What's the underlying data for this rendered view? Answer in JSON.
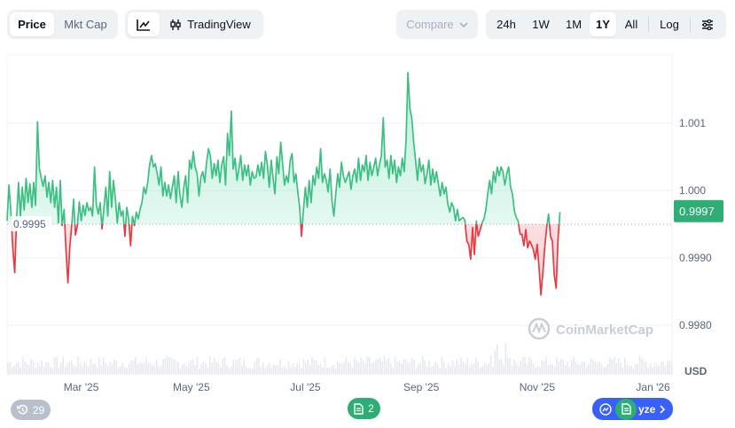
{
  "toolbar": {
    "price_label": "Price",
    "mktcap_label": "Mkt Cap",
    "line_icon": "line-chart-icon",
    "candle_icon": "candlestick-icon",
    "tradingview_label": "TradingView",
    "compare_label": "Compare",
    "ranges": [
      "24h",
      "1W",
      "1M",
      "1Y",
      "All"
    ],
    "active_range": "1Y",
    "log_label": "Log",
    "settings_icon": "sliders-icon"
  },
  "colors": {
    "up": "#16c784",
    "up_line": "#3dbf83",
    "down": "#ea3943",
    "accent_badge": "#2eae74",
    "analyze": "#3861fb"
  },
  "chart_data": {
    "type": "area",
    "xlabel": "",
    "ylabel": "",
    "currency": "USD",
    "baseline": 0.9995,
    "baseline_label": "0.9995",
    "current_price": 0.9997,
    "current_price_label": "0.9997",
    "ylim": [
      0.9975,
      1.0018
    ],
    "y_ticks": [
      {
        "value": 1.001,
        "label": "1.001"
      },
      {
        "value": 1.0,
        "label": "1.000"
      },
      {
        "value": 0.999,
        "label": "0.9990"
      },
      {
        "value": 0.998,
        "label": "0.9980"
      }
    ],
    "x_ticks": [
      {
        "label": "Mar '25",
        "x": 9
      },
      {
        "label": "May '25",
        "x": 67
      },
      {
        "label": "Jul '25",
        "x": 127
      },
      {
        "label": "Sep '25",
        "x": 188
      },
      {
        "label": "Nov '25",
        "x": 249
      },
      {
        "label": "Jan '26",
        "x": 310
      }
    ],
    "xlim": [
      -30,
      320
    ],
    "series": [
      {
        "values": [
          [
            -30,
            0.99955
          ],
          [
            -29,
            1.00008
          ],
          [
            -28,
            0.99968
          ],
          [
            -27,
            0.99915
          ],
          [
            -26,
            0.99878
          ],
          [
            -25,
            0.99958
          ],
          [
            -24,
            1.00012
          ],
          [
            -23,
            0.99962
          ],
          [
            -22,
            1.00005
          ],
          [
            -21,
            0.99971
          ],
          [
            -20,
            1.00018
          ],
          [
            -19,
            0.99982
          ],
          [
            -18,
            1.0001
          ],
          [
            -17,
            0.99975
          ],
          [
            -16,
            1.00012
          ],
          [
            -15,
            0.99978
          ],
          [
            -14,
            1.00102
          ],
          [
            -13,
            1.00033
          ],
          [
            -12,
            1.00018
          ],
          [
            -11,
            1.00006
          ],
          [
            -10,
            1.00022
          ],
          [
            -9,
            0.9999
          ],
          [
            -8,
            1.00012
          ],
          [
            -7,
            0.99982
          ],
          [
            -6,
            1.00015
          ],
          [
            -5,
            0.99975
          ],
          [
            -4,
            1.00005
          ],
          [
            -3,
            0.99952
          ],
          [
            -2,
            1.00015
          ],
          [
            -1,
            0.99948
          ],
          [
            0,
            0.99972
          ],
          [
            1,
            0.99912
          ],
          [
            2,
            0.99863
          ],
          [
            3,
            0.99915
          ],
          [
            4,
            0.99948
          ],
          [
            5,
            0.99987
          ],
          [
            6,
            0.99934
          ],
          [
            7,
            0.99948
          ],
          [
            8,
            0.99983
          ],
          [
            9,
            0.99955
          ],
          [
            10,
            0.99978
          ],
          [
            11,
            0.99963
          ],
          [
            12,
            0.99982
          ],
          [
            13,
            0.9997
          ],
          [
            14,
            0.99975
          ],
          [
            15,
            0.99962
          ],
          [
            16,
            1.00035
          ],
          [
            17,
            0.99978
          ],
          [
            18,
            0.99965
          ],
          [
            19,
            0.99982
          ],
          [
            20,
            0.99943
          ],
          [
            21,
            0.99975
          ],
          [
            22,
            1.00005
          ],
          [
            23,
            0.99962
          ],
          [
            24,
            1.00028
          ],
          [
            25,
            0.99975
          ],
          [
            26,
            1.00015
          ],
          [
            27,
            0.99988
          ],
          [
            28,
            0.99952
          ],
          [
            29,
            0.99982
          ],
          [
            30,
            0.99962
          ],
          [
            31,
            0.9997
          ],
          [
            32,
            0.99932
          ],
          [
            33,
            0.99975
          ],
          [
            34,
            0.99958
          ],
          [
            35,
            0.99918
          ],
          [
            36,
            0.99962
          ],
          [
            37,
            0.99948
          ],
          [
            38,
            0.99968
          ],
          [
            39,
            0.99958
          ],
          [
            40,
            0.99972
          ],
          [
            41,
            0.99982
          ],
          [
            42,
            1.00005
          ],
          [
            43,
            0.99995
          ],
          [
            44,
            1.00012
          ],
          [
            45,
            1.00038
          ],
          [
            46,
            1.00052
          ],
          [
            47,
            1.00035
          ],
          [
            48,
            1.0004
          ],
          [
            49,
            1.00025
          ],
          [
            50,
            1.00008
          ],
          [
            51,
            1.00035
          ],
          [
            52,
            0.99992
          ],
          [
            53,
            1.00012
          ],
          [
            54,
            0.99992
          ],
          [
            55,
            1.00008
          ],
          [
            56,
            0.99988
          ],
          [
            57,
            1.00005
          ],
          [
            58,
            1.00022
          ],
          [
            59,
            0.99982
          ],
          [
            60,
            1.00028
          ],
          [
            61,
            0.99993
          ],
          [
            62,
            0.99975
          ],
          [
            63,
            1.00005
          ],
          [
            64,
            1.00022
          ],
          [
            65,
            0.99982
          ],
          [
            66,
            1.00045
          ],
          [
            67,
            1.00032
          ],
          [
            68,
            1.00058
          ],
          [
            69,
            1.00035
          ],
          [
            70,
            1.00025
          ],
          [
            71,
            0.99992
          ],
          [
            72,
            1.0002
          ],
          [
            73,
            1.00028
          ],
          [
            74,
            1.00012
          ],
          [
            75,
            1.00042
          ],
          [
            76,
            1.00062
          ],
          [
            77,
            1.00052
          ],
          [
            78,
            1.00018
          ],
          [
            79,
            1.0004
          ],
          [
            80,
            1.00022
          ],
          [
            81,
            1.00045
          ],
          [
            82,
            1.00012
          ],
          [
            83,
            1.00038
          ],
          [
            84,
            1.0005
          ],
          [
            85,
            1.00008
          ],
          [
            86,
            1.00085
          ],
          [
            87,
            1.00052
          ],
          [
            88,
            1.00118
          ],
          [
            89,
            1.00032
          ],
          [
            90,
            1.00048
          ],
          [
            91,
            1.00015
          ],
          [
            92,
            1.00032
          ],
          [
            93,
            1.00052
          ],
          [
            94,
            1.00015
          ],
          [
            95,
            1.00038
          ],
          [
            96,
            1.00022
          ],
          [
            97,
            1.00038
          ],
          [
            98,
            1.00008
          ],
          [
            99,
            1.00028
          ],
          [
            100,
            1.00018
          ],
          [
            101,
            1.0002
          ],
          [
            102,
            1.00038
          ],
          [
            103,
            1.00022
          ],
          [
            104,
            1.00042
          ],
          [
            105,
            1.00018
          ],
          [
            106,
            1.00058
          ],
          [
            107,
            1.00038
          ],
          [
            108,
            1.00005
          ],
          [
            109,
            1.00045
          ],
          [
            110,
            1.00018
          ],
          [
            111,
            0.99995
          ],
          [
            112,
            1.0005
          ],
          [
            113,
            1.00025
          ],
          [
            114,
            1.00072
          ],
          [
            115,
            1.0004
          ],
          [
            116,
            1.00008
          ],
          [
            117,
            1.00022
          ],
          [
            118,
            1.00012
          ],
          [
            119,
            1.00045
          ],
          [
            120,
            1.00055
          ],
          [
            121,
            1.00012
          ],
          [
            122,
            1.00025
          ],
          [
            123,
            0.99998
          ],
          [
            124,
            0.99975
          ],
          [
            125,
            0.99932
          ],
          [
            126,
            0.99972
          ],
          [
            127,
            1.00005
          ],
          [
            128,
            0.99975
          ],
          [
            129,
            1.00015
          ],
          [
            130,
            0.99982
          ],
          [
            131,
            1.00022
          ],
          [
            132,
            1.00008
          ],
          [
            133,
            1.00035
          ],
          [
            134,
            1.00018
          ],
          [
            135,
            1.00062
          ],
          [
            136,
            1.00012
          ],
          [
            137,
            1.00025
          ],
          [
            138,
            1.00015
          ],
          [
            139,
            0.99998
          ],
          [
            140,
            1.00032
          ],
          [
            141,
            0.99985
          ],
          [
            142,
            0.99962
          ],
          [
            143,
            0.99995
          ],
          [
            144,
            1.00025
          ],
          [
            145,
            1.00005
          ],
          [
            146,
            1.00042
          ],
          [
            147,
            1.00022
          ],
          [
            148,
            1.00012
          ],
          [
            149,
            1.0002
          ],
          [
            150,
            1.00028
          ],
          [
            151,
            1.00002
          ],
          [
            152,
            1.00022
          ],
          [
            153,
            1.00032
          ],
          [
            154,
            1.00012
          ],
          [
            155,
            1.00048
          ],
          [
            156,
            1.00015
          ],
          [
            157,
            1.00038
          ],
          [
            158,
            1.00028
          ],
          [
            159,
            1.00052
          ],
          [
            160,
            1.00015
          ],
          [
            161,
            1.00042
          ],
          [
            162,
            1.00022
          ],
          [
            163,
            1.00035
          ],
          [
            164,
            1.00048
          ],
          [
            165,
            1.00022
          ],
          [
            166,
            1.00038
          ],
          [
            167,
            1.00052
          ],
          [
            168,
            1.00108
          ],
          [
            169,
            1.00035
          ],
          [
            170,
            1.00045
          ],
          [
            171,
            1.00018
          ],
          [
            172,
            1.00052
          ],
          [
            173,
            1.00025
          ],
          [
            174,
            1.00045
          ],
          [
            175,
            1.00012
          ],
          [
            176,
            1.00035
          ],
          [
            177,
            1.00022
          ],
          [
            178,
            1.00048
          ],
          [
            179,
            1.00028
          ],
          [
            180,
            1.00075
          ],
          [
            181,
            1.00175
          ],
          [
            182,
            1.00122
          ],
          [
            183,
            1.00108
          ],
          [
            184,
            1.00072
          ],
          [
            185,
            1.00045
          ],
          [
            186,
            1.00015
          ],
          [
            187,
            1.00048
          ],
          [
            188,
            1.00028
          ],
          [
            189,
            1.00038
          ],
          [
            190,
            1.0001
          ],
          [
            191,
            1.00025
          ],
          [
            192,
            1.00045
          ],
          [
            193,
            1.00008
          ],
          [
            194,
            1.00032
          ],
          [
            195,
            1.00012
          ],
          [
            196,
            1.00028
          ],
          [
            197,
            1.0001
          ],
          [
            198,
            0.99992
          ],
          [
            199,
            1.00012
          ],
          [
            200,
            0.99995
          ],
          [
            201,
            1.00005
          ],
          [
            202,
            0.9998
          ],
          [
            203,
            0.99968
          ],
          [
            204,
            0.99982
          ],
          [
            205,
            0.99975
          ],
          [
            206,
            0.99955
          ],
          [
            207,
            0.99972
          ],
          [
            208,
            0.99955
          ],
          [
            209,
            0.99958
          ],
          [
            210,
            0.9996
          ],
          [
            211,
            0.99955
          ],
          [
            212,
            0.99925
          ],
          [
            213,
            0.9992
          ],
          [
            214,
            0.99898
          ],
          [
            215,
            0.99945
          ],
          [
            216,
            0.99905
          ],
          [
            217,
            0.99955
          ],
          [
            218,
            0.99932
          ],
          [
            219,
            0.99942
          ],
          [
            220,
            0.99952
          ],
          [
            221,
            0.99958
          ],
          [
            222,
            0.99972
          ],
          [
            223,
            0.99995
          ],
          [
            224,
            1.00015
          ],
          [
            225,
            0.99995
          ],
          [
            226,
            1.00028
          ],
          [
            227,
            1.00012
          ],
          [
            228,
            1.00035
          ],
          [
            229,
            1.00022
          ],
          [
            230,
            1.00035
          ],
          [
            231,
            1.00028
          ],
          [
            232,
            1.00008
          ],
          [
            233,
            1.00025
          ],
          [
            234,
            1.00035
          ],
          [
            235,
            1.00005
          ],
          [
            236,
            0.99995
          ],
          [
            237,
            0.9997
          ],
          [
            238,
            0.9996
          ],
          [
            239,
            0.99955
          ],
          [
            240,
            0.99935
          ],
          [
            241,
            0.99935
          ],
          [
            242,
            0.99918
          ],
          [
            243,
            0.99942
          ],
          [
            244,
            0.99915
          ],
          [
            245,
            0.99925
          ],
          [
            246,
            0.9992
          ],
          [
            247,
            0.99912
          ],
          [
            248,
            0.99898
          ],
          [
            249,
            0.9992
          ],
          [
            250,
            0.99885
          ],
          [
            251,
            0.99845
          ],
          [
            252,
            0.99878
          ],
          [
            253,
            0.99915
          ],
          [
            254,
            0.99945
          ],
          [
            255,
            0.99965
          ],
          [
            256,
            0.99932
          ],
          [
            257,
            0.99925
          ],
          [
            258,
            0.99875
          ],
          [
            259,
            0.99855
          ],
          [
            260,
            0.99928
          ],
          [
            261,
            0.99968
          ]
        ]
      }
    ]
  },
  "watermark": {
    "text": "CoinMarketCap",
    "icon": "coinmarketcap-logo-icon"
  },
  "markers": {
    "history_count": "29",
    "history_icon": "history-icon",
    "notes_count": "2",
    "notes_icon": "document-icon",
    "analyze_label": "yze",
    "analyze_icon": "ai-analyze-icon",
    "chevron_icon": "chevron-right-icon"
  }
}
